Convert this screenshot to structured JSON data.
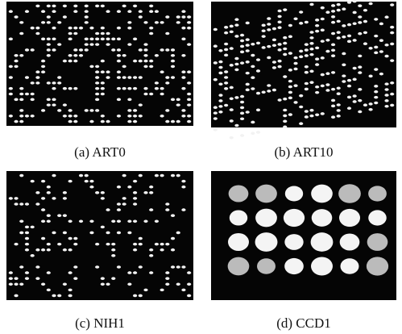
{
  "figure": {
    "panels": [
      {
        "caption": "(a) ART0"
      },
      {
        "caption": "(b) ART10"
      },
      {
        "caption": "(c) NIH1"
      },
      {
        "caption": "(d) CCD1"
      }
    ]
  }
}
